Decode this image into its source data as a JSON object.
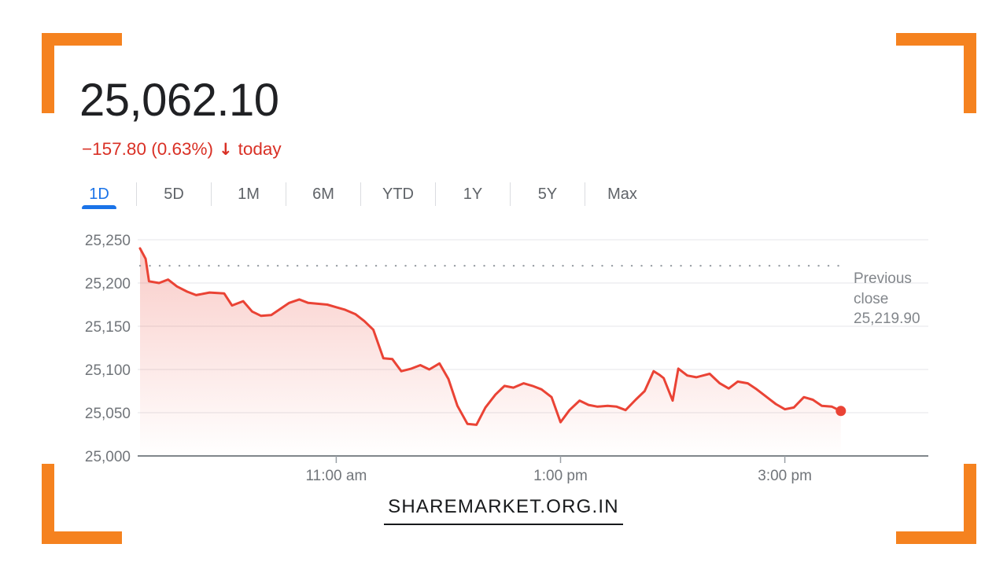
{
  "header": {
    "price": "25,062.10",
    "change_text": "−157.80 (0.63%)",
    "arrow": "↓",
    "change_suffix": "today"
  },
  "tabs": [
    {
      "label": "1D",
      "active": true
    },
    {
      "label": "5D",
      "active": false
    },
    {
      "label": "1M",
      "active": false
    },
    {
      "label": "6M",
      "active": false
    },
    {
      "label": "YTD",
      "active": false
    },
    {
      "label": "1Y",
      "active": false
    },
    {
      "label": "5Y",
      "active": false
    },
    {
      "label": "Max",
      "active": false
    }
  ],
  "chart_data": {
    "type": "line",
    "title": "",
    "xlabel": "",
    "ylabel": "",
    "x_unit": "hour_of_day_24h",
    "x_range_hours": [
      9.25,
      16.28
    ],
    "y_range": [
      25000,
      25250
    ],
    "grid": true,
    "line_color": "#ea4335",
    "previous_close": 25219.9,
    "annotation": "Previous\nclose\n25,219.90",
    "x_ticks": [
      {
        "t": 11,
        "label": "11:00 am"
      },
      {
        "t": 13,
        "label": "1:00 pm"
      },
      {
        "t": 15,
        "label": "3:00 pm"
      }
    ],
    "y_ticks": [
      {
        "v": 25000,
        "label": "25,000"
      },
      {
        "v": 25050,
        "label": "25,050"
      },
      {
        "v": 25100,
        "label": "25,100"
      },
      {
        "v": 25150,
        "label": "25,150"
      },
      {
        "v": 25200,
        "label": "25,200"
      },
      {
        "v": 25250,
        "label": "25,250"
      }
    ],
    "points": [
      [
        9.25,
        25240
      ],
      [
        9.3,
        25228
      ],
      [
        9.33,
        25202
      ],
      [
        9.42,
        25200
      ],
      [
        9.5,
        25204
      ],
      [
        9.58,
        25196
      ],
      [
        9.67,
        25190
      ],
      [
        9.75,
        25186
      ],
      [
        9.87,
        25189
      ],
      [
        10.0,
        25188
      ],
      [
        10.07,
        25174
      ],
      [
        10.17,
        25179
      ],
      [
        10.25,
        25167
      ],
      [
        10.33,
        25162
      ],
      [
        10.42,
        25163
      ],
      [
        10.5,
        25170
      ],
      [
        10.58,
        25177
      ],
      [
        10.67,
        25181
      ],
      [
        10.75,
        25177
      ],
      [
        10.92,
        25175
      ],
      [
        11.0,
        25172
      ],
      [
        11.08,
        25169
      ],
      [
        11.17,
        25164
      ],
      [
        11.25,
        25156
      ],
      [
        11.33,
        25146
      ],
      [
        11.42,
        25113
      ],
      [
        11.5,
        25112
      ],
      [
        11.58,
        25098
      ],
      [
        11.67,
        25101
      ],
      [
        11.75,
        25105
      ],
      [
        11.83,
        25100
      ],
      [
        11.92,
        25107
      ],
      [
        12.0,
        25089
      ],
      [
        12.08,
        25058
      ],
      [
        12.17,
        25037
      ],
      [
        12.25,
        25036
      ],
      [
        12.33,
        25056
      ],
      [
        12.42,
        25071
      ],
      [
        12.5,
        25081
      ],
      [
        12.58,
        25079
      ],
      [
        12.67,
        25084
      ],
      [
        12.75,
        25081
      ],
      [
        12.83,
        25077
      ],
      [
        12.92,
        25068
      ],
      [
        13.0,
        25039
      ],
      [
        13.08,
        25053
      ],
      [
        13.17,
        25064
      ],
      [
        13.25,
        25059
      ],
      [
        13.33,
        25057
      ],
      [
        13.42,
        25058
      ],
      [
        13.5,
        25057
      ],
      [
        13.58,
        25053
      ],
      [
        13.67,
        25065
      ],
      [
        13.75,
        25075
      ],
      [
        13.83,
        25098
      ],
      [
        13.88,
        25094
      ],
      [
        13.92,
        25090
      ],
      [
        14.0,
        25064
      ],
      [
        14.05,
        25101
      ],
      [
        14.13,
        25093
      ],
      [
        14.21,
        25091
      ],
      [
        14.33,
        25095
      ],
      [
        14.42,
        25084
      ],
      [
        14.5,
        25078
      ],
      [
        14.58,
        25086
      ],
      [
        14.67,
        25084
      ],
      [
        14.75,
        25077
      ],
      [
        14.83,
        25069
      ],
      [
        14.92,
        25060
      ],
      [
        15.0,
        25054
      ],
      [
        15.08,
        25056
      ],
      [
        15.17,
        25068
      ],
      [
        15.25,
        25065
      ],
      [
        15.33,
        25058
      ],
      [
        15.42,
        25057
      ],
      [
        15.5,
        25052
      ]
    ]
  },
  "watermark": "SHAREMARKET.ORG.IN",
  "colors": {
    "accent_orange": "#f5821f",
    "negative_red": "#d93025",
    "line_red": "#ea4335",
    "active_blue": "#1a73e8",
    "text_primary": "#202124",
    "text_secondary": "#5f6368",
    "axis_gray": "#71757a",
    "divider_gray": "#dadce0",
    "grid_gray": "#edeef0",
    "baseline_gray": "#80868b"
  }
}
